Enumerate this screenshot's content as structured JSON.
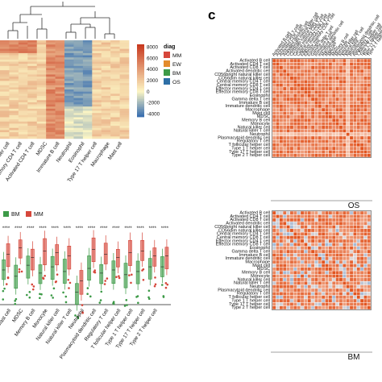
{
  "panel_labels": {
    "c": "c"
  },
  "legend_diag": {
    "title": "diag",
    "entries": [
      {
        "label": "MM",
        "color": "#d6473b"
      },
      {
        "label": "EW",
        "color": "#e38b2c"
      },
      {
        "label": "BM",
        "color": "#3d9a47"
      },
      {
        "label": "OS",
        "color": "#2e6fa6"
      }
    ]
  },
  "legend_boxplot": {
    "entries": [
      {
        "label": "BM",
        "color": "#3d9a47"
      },
      {
        "label": "MM",
        "color": "#d6473b"
      }
    ]
  },
  "colors": {
    "heat_low": "#3a6fb0",
    "heat_mid": "#fdf6c4",
    "heat_high": "#c8391f",
    "corr_high": "#e2541f",
    "corr_low": "#7aa6d6"
  },
  "chart_data": [
    {
      "type": "heatmap",
      "name": "cell-abundance-heatmap",
      "colorbar": {
        "ticks": [
          8000,
          6000,
          4000,
          2000,
          0,
          -2000,
          -4000
        ],
        "range": [
          -4500,
          8500
        ]
      },
      "column_labels": [
        "NK killer cell",
        "Memory CD4 T cell",
        "Activated CD4 T cell",
        "MDSC",
        "Immature B cell",
        "Neutrophil",
        "Eosinophil",
        "Type 17 T helper cell",
        "Macrophage",
        "Mast cell"
      ]
    },
    {
      "type": "bar",
      "subtype": "boxplot",
      "name": "BM-vs-MM-boxplot",
      "significance": "****",
      "categories": [
        "Mast cell",
        "MDSC",
        "Memory B cell",
        "Monocyte",
        "Natural killer cell",
        "Natural killer T cell",
        "Neutrophil",
        "Plasmacytoid dendritic cell",
        "Regulatory T cell",
        "T follicular helper cell",
        "Type 1 T helper cell",
        "Type 17 T helper cell",
        "Type 2 T helper cell"
      ],
      "series": [
        {
          "name": "BM",
          "values": [
            0.22,
            0.18,
            0.25,
            0.2,
            0.24,
            0.21,
            0.08,
            0.23,
            0.2,
            0.22,
            0.19,
            0.21,
            0.24
          ]
        },
        {
          "name": "MM",
          "values": [
            0.32,
            0.36,
            0.3,
            0.34,
            0.33,
            0.31,
            0.15,
            0.35,
            0.32,
            0.3,
            0.33,
            0.34,
            0.31
          ]
        }
      ]
    },
    {
      "type": "heatmap",
      "name": "correlation-OS",
      "title": "OS",
      "labels": [
        "Activated B cell",
        "Activated CD4 T cell",
        "Activated CD8 T cell",
        "Activated dendritic cell",
        "CD56bright natural killer cell",
        "CD56dim natural killer cell",
        "Central memory CD4 T cell",
        "Central memory CD8 T cell",
        "Effector memory CD4 T cell",
        "Effector memory CD8 T cell",
        "Eosinophil",
        "Gamma delta T cell",
        "Immature B cell",
        "Immature dendritic cell",
        "Macrophage",
        "Mast cell",
        "MDSC",
        "Memory B cell",
        "Monocyte",
        "Natural killer cell",
        "Natural killer T cell",
        "Neutrophil",
        "Plasmacytoid dendritic cell",
        "Regulatory T cell",
        "T follicular helper cell",
        "Type 1 T helper cell",
        "Type 17 T helper cell",
        "Type 2 T helper cell"
      ],
      "value_range": [
        -1,
        1
      ]
    },
    {
      "type": "heatmap",
      "name": "correlation-BM",
      "title": "BM",
      "labels": [
        "Activated B cell",
        "Activated CD4 T cell",
        "Activated CD8 T cell",
        "Activated dendritic cell",
        "CD56bright natural killer cell",
        "CD56dim natural killer cell",
        "Central memory CD4 T cell",
        "Central memory CD8 T cell",
        "Effector memory CD4 T cell",
        "Effector memory CD8 T cell",
        "Eosinophil",
        "Gamma delta T cell",
        "Immature B cell",
        "Immature dendritic cell",
        "Macrophage",
        "Mast cell",
        "MDSC",
        "Memory B cell",
        "Monocyte",
        "Natural killer cell",
        "Natural killer T cell",
        "Neutrophil",
        "Plasmacytoid dendritic cell",
        "Regulatory T cell",
        "T follicular helper cell",
        "Type 1 T helper cell",
        "Type 17 T helper cell",
        "Type 2 T helper cell"
      ],
      "value_range": [
        -1,
        1
      ]
    }
  ]
}
